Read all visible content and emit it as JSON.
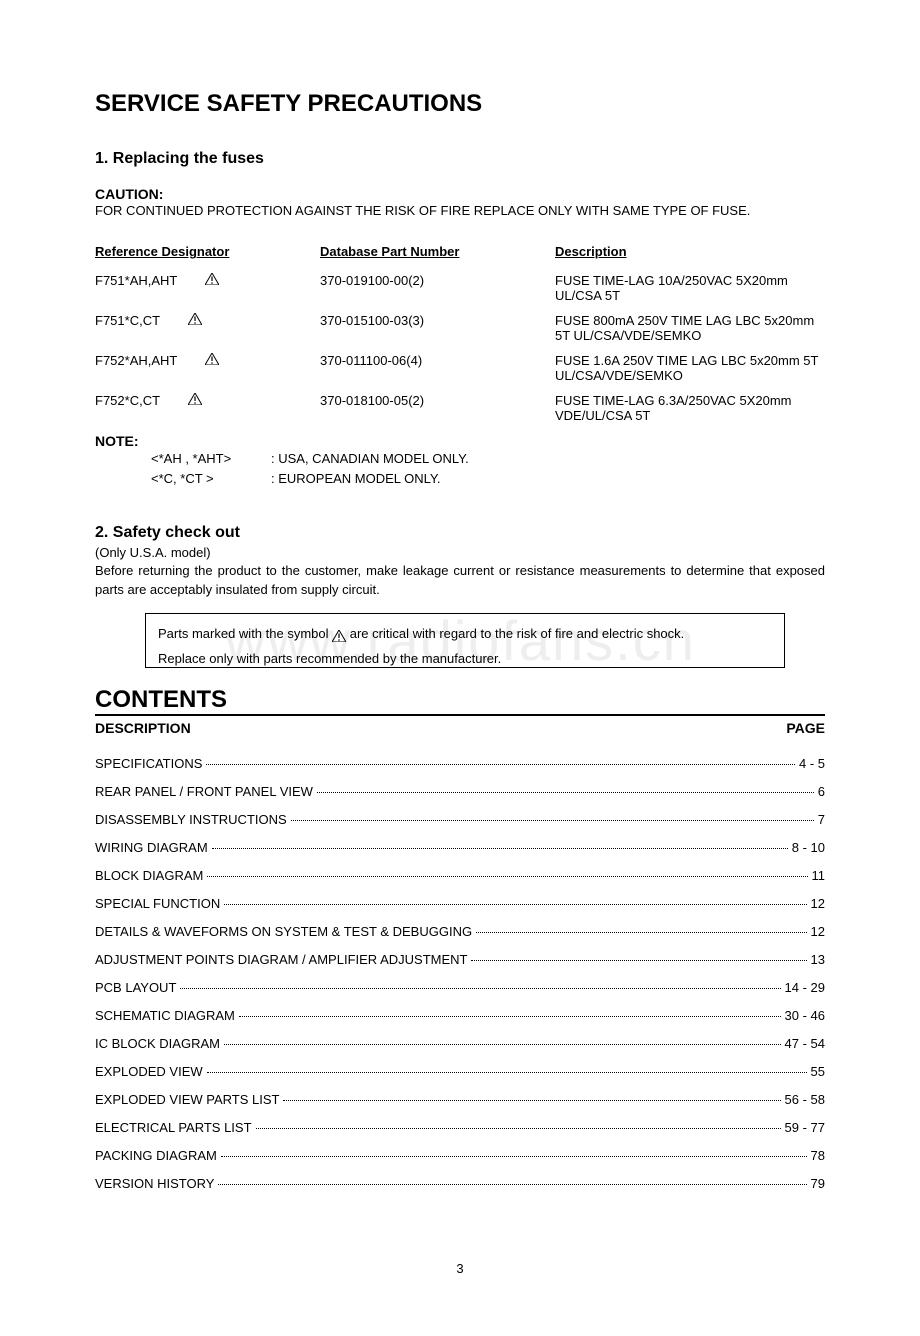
{
  "watermark": {
    "text": "www.radiofans.cn",
    "color": "#eeeeee",
    "fontsize": 56
  },
  "page_number": "3",
  "section1": {
    "main_title": "SERVICE SAFETY PRECAUTIONS",
    "sub1_title": "1. Replacing the fuses",
    "caution_label": "CAUTION:",
    "caution_text": "FOR CONTINUED PROTECTION AGAINST THE RISK OF FIRE REPLACE ONLY WITH SAME TYPE OF FUSE.",
    "headers": {
      "ref": "Reference Designator",
      "part": "Database Part Number",
      "desc": "Description"
    },
    "rows": [
      {
        "ref": "F751*AH,AHT",
        "part": "370-019100-00(2)",
        "desc": "FUSE TIME-LAG 10A/250VAC 5X20mm UL/CSA 5T"
      },
      {
        "ref": "F751*C,CT",
        "part": "370-015100-03(3)",
        "desc": "FUSE 800mA 250V TIME LAG LBC 5x20mm 5T UL/CSA/VDE/SEMKO"
      },
      {
        "ref": "F752*AH,AHT",
        "part": "370-011100-06(4)",
        "desc": "FUSE 1.6A 250V TIME LAG LBC 5x20mm 5T UL/CSA/VDE/SEMKO"
      },
      {
        "ref": "F752*C,CT",
        "part": "370-018100-05(2)",
        "desc": "FUSE TIME-LAG 6.3A/250VAC 5X20mm VDE/UL/CSA 5T"
      }
    ],
    "note_label": "NOTE:",
    "notes": [
      {
        "key": "<*AH , *AHT>",
        "val": ": USA, CANADIAN MODEL ONLY."
      },
      {
        "key": "<*C, *CT >",
        "val": ": EUROPEAN MODEL ONLY."
      }
    ]
  },
  "section2": {
    "title": "2. Safety check out",
    "subtitle": "(Only U.S.A. model)",
    "body": "Before returning the product to the customer, make leakage current or resistance measurements to determine that exposed parts are acceptably insulated from supply circuit.",
    "box_line1_a": "Parts marked with the symbol ",
    "box_line1_b": " are critical with regard to the risk of fire and electric shock.",
    "box_line2": "Replace only with parts recommended by the manufacturer."
  },
  "contents": {
    "title": "CONTENTS",
    "header_left": "DESCRIPTION",
    "header_right": "PAGE",
    "items": [
      {
        "label": "SPECIFICATIONS",
        "page": "4 - 5"
      },
      {
        "label": "REAR PANEL / FRONT PANEL VIEW ",
        "page": "6"
      },
      {
        "label": "DISASSEMBLY INSTRUCTIONS ",
        "page": "7"
      },
      {
        "label": "WIRING DIAGRAM ",
        "page": "8 - 10"
      },
      {
        "label": "BLOCK DIAGRAM ",
        "page": "11"
      },
      {
        "label": "SPECIAL FUNCTION ",
        "page": " 12"
      },
      {
        "label": "DETAILS & WAVEFORMS ON SYSTEM & TEST & DEBUGGING ",
        "page": " 12"
      },
      {
        "label": "ADJUSTMENT POINTS DIAGRAM / AMPLIFIER ADJUSTMENT ",
        "page": " 13"
      },
      {
        "label": "PCB LAYOUT ",
        "page": " 14 - 29"
      },
      {
        "label": "SCHEMATIC DIAGRAM ",
        "page": " 30 - 46"
      },
      {
        "label": "IC BLOCK DIAGRAM ",
        "page": " 47 - 54"
      },
      {
        "label": "EXPLODED VIEW ",
        "page": " 55"
      },
      {
        "label": "EXPLODED VIEW PARTS LIST",
        "page": " 56 - 58"
      },
      {
        "label": "ELECTRICAL PARTS LIST ",
        "page": " 59 - 77"
      },
      {
        "label": "PACKING DIAGRAM ",
        "page": " 78"
      },
      {
        "label": "VERSION HISTORY ",
        "page": " 79"
      }
    ]
  }
}
